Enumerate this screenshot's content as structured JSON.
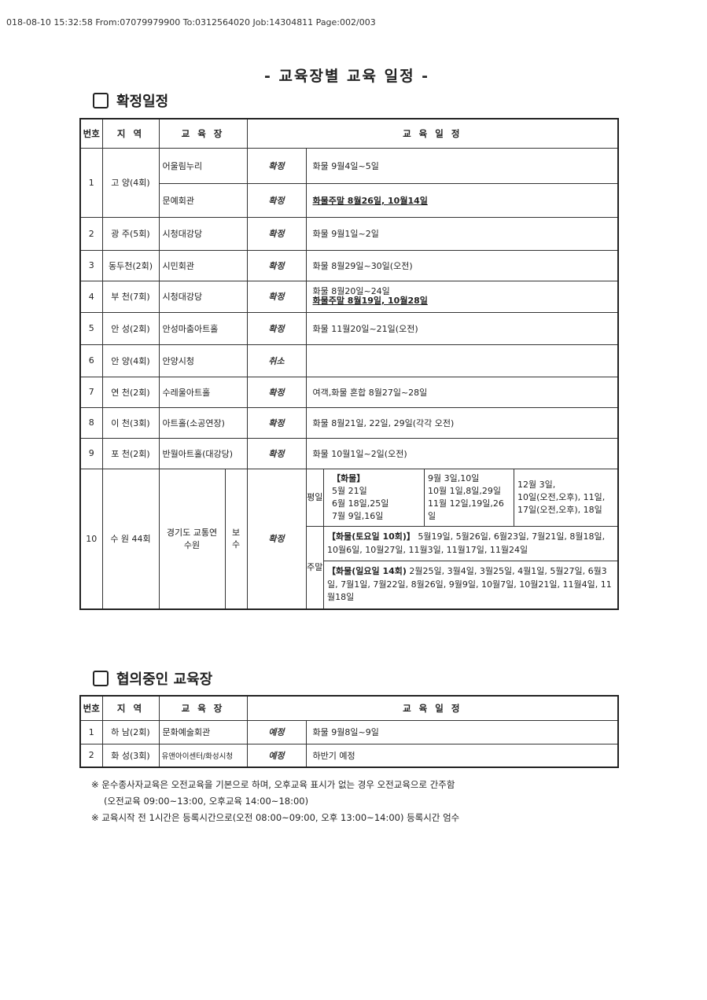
{
  "fax_header": "018-08-10 15:32:58 From:07079979900 To:0312564020 Job:14304811 Page:002/003",
  "title": "- 교육장별 교육 일정 -",
  "confirmed": {
    "heading": "확정일정",
    "headers": {
      "no": "번호",
      "region": "지 역",
      "venue": "교 육 장",
      "schedule": "교 육 일 정"
    },
    "rows": [
      {
        "no": "1",
        "region": "고 양(4회)",
        "venue": "어울림누리",
        "status": "확정",
        "schedule": "화물 9월4일~5일"
      },
      {
        "venue": "문예회관",
        "status": "확정",
        "schedule": "화물주말 8월26일, 10월14일"
      },
      {
        "no": "2",
        "region": "광  주(5회)",
        "venue": "시청대강당",
        "status": "확정",
        "schedule": "화물 9월1일~2일"
      },
      {
        "no": "3",
        "region": "동두천(2회)",
        "venue": "시민회관",
        "status": "확정",
        "schedule": "화물 8월29일~30일(오전)"
      },
      {
        "no": "4",
        "region": "부 천(7회)",
        "venue": "시청대강당",
        "status": "확정",
        "schedule": "화물 8월20일~24일",
        "schedule2": "화물주말 8월19일, 10월28일"
      },
      {
        "no": "5",
        "region": "안  성(2회)",
        "venue": "안성마춤아트홀",
        "status": "확정",
        "schedule": "화물 11월20일~21일(오전)"
      },
      {
        "no": "6",
        "region": "안  양(4회)",
        "venue": "안양시청",
        "status": "취소",
        "schedule": ""
      },
      {
        "no": "7",
        "region": "연  천(2회)",
        "venue": "수레울아트홀",
        "status": "확정",
        "schedule": "여객,화물 혼합 8월27일~28일"
      },
      {
        "no": "8",
        "region": "이  천(3회)",
        "venue": "아트홀(소공연장)",
        "status": "확정",
        "schedule": "화물 8월21일, 22일, 29일(각각 오전)"
      },
      {
        "no": "9",
        "region": "포  천(2회)",
        "venue": "반월아트홀(대강당)",
        "status": "확정",
        "schedule": "화물 10월1일~2일(오전)"
      }
    ],
    "row10": {
      "no": "10",
      "region": "수 원 44회",
      "venue": "경기도 교통연수원",
      "type": "보수",
      "status": "확정",
      "weekday_label": "평일",
      "weekend_label": "주말",
      "weekday_cols": [
        [
          "【화물】",
          "5월 21일",
          "6월 18일,25일",
          "7월 9일,16일"
        ],
        [
          "9월 3일,10일",
          "10월 1일,8일,29일",
          "11월 12일,19일,26일"
        ],
        [
          "12월 3일,",
          "10일(오전,오후), 11일,",
          "17일(오전,오후), 18일"
        ]
      ],
      "saturday_label": "【화물(토요일 10회)】",
      "saturday": "5월19일,  5월26일, 6월23일, 7월21일, 8월18일, 10월6일, 10월27일, 11월3일, 11월17일, 11월24일",
      "sunday_label": "【화물(일요일 14회)",
      "sunday": "2월25일, 3월4일, 3월25일, 4월1일, 5월27일, 6월3일, 7월1일, 7월22일, 8월26일,  9월9일, 10월7일, 10월21일, 11월4일, 11월18일"
    }
  },
  "negotiating": {
    "heading": "협의중인 교육장",
    "headers": {
      "no": "번호",
      "region": "지 역",
      "venue": "교 육 장",
      "schedule": "교 육 일 정"
    },
    "rows": [
      {
        "no": "1",
        "region": "하  남(2회)",
        "venue": "문화예술회관",
        "status": "예정",
        "schedule": "화물 9월8일~9일"
      },
      {
        "no": "2",
        "region": "화 성(3회)",
        "venue": "유앤아이센터/화성시청",
        "status": "예정",
        "schedule": "하반기 예정"
      }
    ]
  },
  "notes": [
    "※ 운수종사자교육은 오전교육을 기본으로 하며, 오후교육 표시가 없는 경우 오전교육으로 간주함",
    "(오전교육 09:00~13:00, 오후교육 14:00~18:00)",
    "※ 교육시작 전 1시간은 등록시간으로(오전 08:00~09:00, 오후 13:00~14:00) 등록시간 엄수"
  ]
}
